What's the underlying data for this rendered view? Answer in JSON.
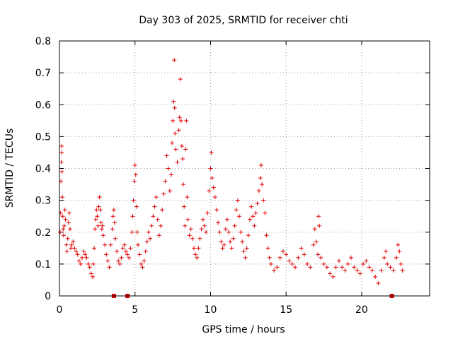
{
  "chart_data": {
    "type": "scatter",
    "title": "Day 303 of 2025, SRMTID for receiver chti",
    "xlabel": "GPS time / hours",
    "ylabel": "SRMTID / TECUs",
    "xlim": [
      0,
      24.5
    ],
    "ylim": [
      0,
      0.8
    ],
    "xticks": [
      "0",
      "5",
      "10",
      "15",
      "20"
    ],
    "xtick_values": [
      0,
      5,
      10,
      15,
      20
    ],
    "yticks": [
      "0",
      "0.1",
      "0.2",
      "0.3",
      "0.4",
      "0.5",
      "0.6",
      "0.7",
      "0.8"
    ],
    "ytick_values": [
      0,
      0.1,
      0.2,
      0.3,
      0.4,
      0.5,
      0.6,
      0.7,
      0.8
    ],
    "grid": true,
    "marker": "+",
    "color": "#e00000",
    "gap_markers_x": [
      3.6,
      4.5,
      22.0
    ],
    "series": [
      {
        "name": "SRMTID",
        "points": [
          [
            0.05,
            0.2
          ],
          [
            0.08,
            0.26
          ],
          [
            0.1,
            0.36
          ],
          [
            0.12,
            0.42
          ],
          [
            0.14,
            0.47
          ],
          [
            0.15,
            0.45
          ],
          [
            0.17,
            0.39
          ],
          [
            0.19,
            0.31
          ],
          [
            0.22,
            0.25
          ],
          [
            0.25,
            0.21
          ],
          [
            0.28,
            0.19
          ],
          [
            0.32,
            0.22
          ],
          [
            0.36,
            0.27
          ],
          [
            0.4,
            0.24
          ],
          [
            0.45,
            0.16
          ],
          [
            0.5,
            0.14
          ],
          [
            0.55,
            0.18
          ],
          [
            0.6,
            0.23
          ],
          [
            0.65,
            0.26
          ],
          [
            0.7,
            0.21
          ],
          [
            0.75,
            0.15
          ],
          [
            0.8,
            0.16
          ],
          [
            0.9,
            0.17
          ],
          [
            1.0,
            0.15
          ],
          [
            1.1,
            0.14
          ],
          [
            1.2,
            0.13
          ],
          [
            1.3,
            0.11
          ],
          [
            1.4,
            0.1
          ],
          [
            1.5,
            0.12
          ],
          [
            1.6,
            0.14
          ],
          [
            1.7,
            0.13
          ],
          [
            1.8,
            0.12
          ],
          [
            1.9,
            0.1
          ],
          [
            2.0,
            0.09
          ],
          [
            2.1,
            0.07
          ],
          [
            2.2,
            0.06
          ],
          [
            2.25,
            0.1
          ],
          [
            2.3,
            0.15
          ],
          [
            2.35,
            0.21
          ],
          [
            2.4,
            0.24
          ],
          [
            2.45,
            0.27
          ],
          [
            2.5,
            0.25
          ],
          [
            2.55,
            0.22
          ],
          [
            2.6,
            0.28
          ],
          [
            2.65,
            0.31
          ],
          [
            2.7,
            0.27
          ],
          [
            2.75,
            0.23
          ],
          [
            2.8,
            0.21
          ],
          [
            2.85,
            0.22
          ],
          [
            2.9,
            0.19
          ],
          [
            3.0,
            0.16
          ],
          [
            3.1,
            0.13
          ],
          [
            3.2,
            0.11
          ],
          [
            3.3,
            0.09
          ],
          [
            3.4,
            0.16
          ],
          [
            3.5,
            0.21
          ],
          [
            3.55,
            0.25
          ],
          [
            3.6,
            0.27
          ],
          [
            3.65,
            0.23
          ],
          [
            3.7,
            0.18
          ],
          [
            3.8,
            0.14
          ],
          [
            3.9,
            0.11
          ],
          [
            4.0,
            0.1
          ],
          [
            4.1,
            0.12
          ],
          [
            4.2,
            0.15
          ],
          [
            4.3,
            0.16
          ],
          [
            4.4,
            0.14
          ],
          [
            4.5,
            0.13
          ],
          [
            4.6,
            0.12
          ],
          [
            4.7,
            0.15
          ],
          [
            4.8,
            0.2
          ],
          [
            4.85,
            0.25
          ],
          [
            4.9,
            0.3
          ],
          [
            4.95,
            0.36
          ],
          [
            5.0,
            0.41
          ],
          [
            5.05,
            0.38
          ],
          [
            5.1,
            0.28
          ],
          [
            5.15,
            0.2
          ],
          [
            5.2,
            0.16
          ],
          [
            5.3,
            0.13
          ],
          [
            5.4,
            0.1
          ],
          [
            5.5,
            0.09
          ],
          [
            5.6,
            0.11
          ],
          [
            5.7,
            0.14
          ],
          [
            5.8,
            0.17
          ],
          [
            5.9,
            0.2
          ],
          [
            6.0,
            0.18
          ],
          [
            6.1,
            0.22
          ],
          [
            6.2,
            0.25
          ],
          [
            6.3,
            0.28
          ],
          [
            6.4,
            0.31
          ],
          [
            6.5,
            0.24
          ],
          [
            6.6,
            0.19
          ],
          [
            6.7,
            0.22
          ],
          [
            6.8,
            0.27
          ],
          [
            6.9,
            0.32
          ],
          [
            7.0,
            0.36
          ],
          [
            7.1,
            0.44
          ],
          [
            7.2,
            0.4
          ],
          [
            7.3,
            0.33
          ],
          [
            7.4,
            0.38
          ],
          [
            7.45,
            0.48
          ],
          [
            7.5,
            0.55
          ],
          [
            7.55,
            0.61
          ],
          [
            7.6,
            0.74
          ],
          [
            7.62,
            0.59
          ],
          [
            7.65,
            0.51
          ],
          [
            7.7,
            0.46
          ],
          [
            7.8,
            0.42
          ],
          [
            7.9,
            0.52
          ],
          [
            7.95,
            0.56
          ],
          [
            8.0,
            0.68
          ],
          [
            8.05,
            0.55
          ],
          [
            8.1,
            0.47
          ],
          [
            8.15,
            0.43
          ],
          [
            8.2,
            0.35
          ],
          [
            8.25,
            0.28
          ],
          [
            8.3,
            0.22
          ],
          [
            8.35,
            0.46
          ],
          [
            8.4,
            0.55
          ],
          [
            8.45,
            0.31
          ],
          [
            8.5,
            0.24
          ],
          [
            8.6,
            0.19
          ],
          [
            8.7,
            0.21
          ],
          [
            8.8,
            0.18
          ],
          [
            8.9,
            0.15
          ],
          [
            9.0,
            0.13
          ],
          [
            9.1,
            0.12
          ],
          [
            9.2,
            0.15
          ],
          [
            9.3,
            0.18
          ],
          [
            9.4,
            0.21
          ],
          [
            9.5,
            0.24
          ],
          [
            9.6,
            0.22
          ],
          [
            9.7,
            0.2
          ],
          [
            9.8,
            0.26
          ],
          [
            9.9,
            0.33
          ],
          [
            10.0,
            0.4
          ],
          [
            10.05,
            0.45
          ],
          [
            10.1,
            0.37
          ],
          [
            10.2,
            0.34
          ],
          [
            10.3,
            0.31
          ],
          [
            10.4,
            0.27
          ],
          [
            10.5,
            0.23
          ],
          [
            10.6,
            0.2
          ],
          [
            10.7,
            0.17
          ],
          [
            10.8,
            0.15
          ],
          [
            10.9,
            0.16
          ],
          [
            11.0,
            0.21
          ],
          [
            11.1,
            0.24
          ],
          [
            11.2,
            0.2
          ],
          [
            11.3,
            0.17
          ],
          [
            11.4,
            0.15
          ],
          [
            11.5,
            0.18
          ],
          [
            11.6,
            0.22
          ],
          [
            11.7,
            0.27
          ],
          [
            11.8,
            0.3
          ],
          [
            11.9,
            0.25
          ],
          [
            12.0,
            0.2
          ],
          [
            12.1,
            0.17
          ],
          [
            12.2,
            0.14
          ],
          [
            12.3,
            0.12
          ],
          [
            12.4,
            0.15
          ],
          [
            12.5,
            0.19
          ],
          [
            12.6,
            0.24
          ],
          [
            12.7,
            0.28
          ],
          [
            12.8,
            0.25
          ],
          [
            12.9,
            0.22
          ],
          [
            13.0,
            0.26
          ],
          [
            13.1,
            0.29
          ],
          [
            13.2,
            0.33
          ],
          [
            13.3,
            0.37
          ],
          [
            13.35,
            0.41
          ],
          [
            13.4,
            0.35
          ],
          [
            13.5,
            0.3
          ],
          [
            13.6,
            0.26
          ],
          [
            13.7,
            0.19
          ],
          [
            13.8,
            0.15
          ],
          [
            13.9,
            0.12
          ],
          [
            14.0,
            0.1
          ],
          [
            14.2,
            0.08
          ],
          [
            14.4,
            0.09
          ],
          [
            14.6,
            0.12
          ],
          [
            14.8,
            0.14
          ],
          [
            15.0,
            0.13
          ],
          [
            15.2,
            0.11
          ],
          [
            15.4,
            0.1
          ],
          [
            15.6,
            0.09
          ],
          [
            15.8,
            0.12
          ],
          [
            16.0,
            0.15
          ],
          [
            16.2,
            0.13
          ],
          [
            16.4,
            0.1
          ],
          [
            16.6,
            0.09
          ],
          [
            16.8,
            0.16
          ],
          [
            16.9,
            0.21
          ],
          [
            17.0,
            0.17
          ],
          [
            17.1,
            0.13
          ],
          [
            17.15,
            0.25
          ],
          [
            17.2,
            0.22
          ],
          [
            17.3,
            0.12
          ],
          [
            17.5,
            0.1
          ],
          [
            17.7,
            0.09
          ],
          [
            17.9,
            0.07
          ],
          [
            18.1,
            0.06
          ],
          [
            18.3,
            0.09
          ],
          [
            18.5,
            0.11
          ],
          [
            18.7,
            0.09
          ],
          [
            18.9,
            0.08
          ],
          [
            19.1,
            0.1
          ],
          [
            19.3,
            0.12
          ],
          [
            19.5,
            0.09
          ],
          [
            19.7,
            0.08
          ],
          [
            19.9,
            0.07
          ],
          [
            20.1,
            0.1
          ],
          [
            20.3,
            0.11
          ],
          [
            20.5,
            0.09
          ],
          [
            20.7,
            0.08
          ],
          [
            20.9,
            0.06
          ],
          [
            21.1,
            0.04
          ],
          [
            21.3,
            0.08
          ],
          [
            21.5,
            0.12
          ],
          [
            21.6,
            0.14
          ],
          [
            21.7,
            0.1
          ],
          [
            21.9,
            0.09
          ],
          [
            22.1,
            0.08
          ],
          [
            22.3,
            0.12
          ],
          [
            22.4,
            0.16
          ],
          [
            22.5,
            0.14
          ],
          [
            22.6,
            0.1
          ],
          [
            22.7,
            0.08
          ]
        ]
      }
    ]
  }
}
